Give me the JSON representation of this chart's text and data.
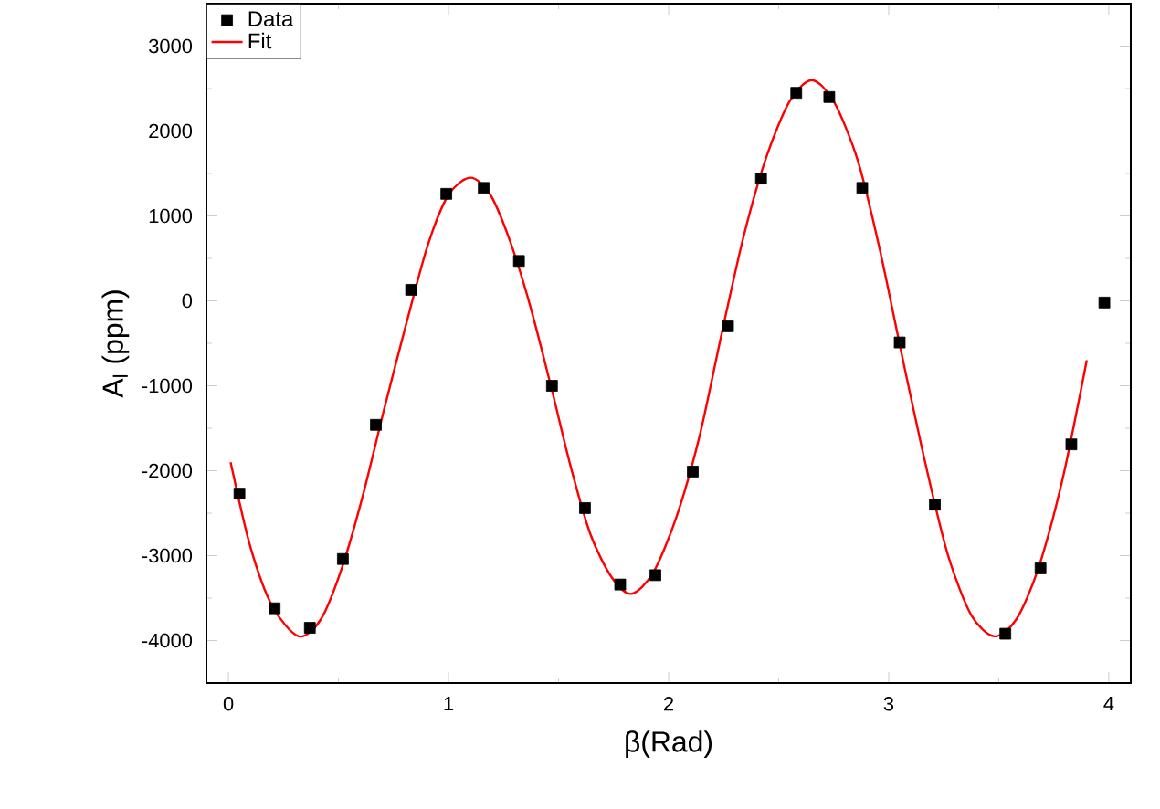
{
  "chart_data": {
    "type": "scatter",
    "xlabel": "β(Rad)",
    "ylabel": "A$_{l}$ (ppm)",
    "xlim": [
      -0.1,
      4.1
    ],
    "ylim": [
      -4500,
      3500
    ],
    "xticks": [
      0,
      1,
      2,
      3,
      4
    ],
    "yticks": [
      -4000,
      -3000,
      -2000,
      -1000,
      0,
      1000,
      2000,
      3000
    ],
    "legend": "top left",
    "grid": false,
    "series": [
      {
        "name": "Data",
        "marker": "square",
        "color": "#000000",
        "x": [
          0.05,
          0.21,
          0.37,
          0.52,
          0.67,
          0.83,
          0.99,
          1.16,
          1.32,
          1.47,
          1.62,
          1.78,
          1.94,
          2.11,
          2.27,
          2.42,
          2.58,
          2.73,
          2.88,
          3.05,
          3.21,
          3.53,
          3.69,
          3.83,
          3.98
        ],
        "values": [
          -2270,
          -3620,
          -3850,
          -3040,
          -1460,
          130,
          1260,
          1330,
          470,
          -1000,
          -2440,
          -3340,
          -3230,
          -2010,
          -300,
          1440,
          2450,
          2400,
          1330,
          -490,
          -2400,
          -3920,
          -3150,
          -1690,
          -20
        ]
      },
      {
        "name": "Fit",
        "type": "line",
        "marker": "none",
        "line_style": "solid",
        "color": "#ff0000",
        "x": [
          0.01,
          0.1,
          0.2,
          0.32,
          0.42,
          0.515,
          0.61,
          0.71,
          0.81,
          0.905,
          1.0,
          1.1,
          1.19,
          1.28,
          1.37,
          1.465,
          1.555,
          1.645,
          1.74,
          1.83,
          1.93,
          2.035,
          2.14,
          2.24,
          2.34,
          2.445,
          2.55,
          2.65,
          2.75,
          2.86,
          2.96,
          3.065,
          3.17,
          3.27,
          3.375,
          3.48,
          3.58,
          3.68,
          3.79,
          3.9
        ],
        "values": [
          -1900,
          -2900,
          -3600,
          -3950,
          -3750,
          -3150,
          -2300,
          -1250,
          -250,
          650,
          1250,
          1450,
          1250,
          700,
          -50,
          -1000,
          -1950,
          -2750,
          -3250,
          -3450,
          -3200,
          -2550,
          -1600,
          -400,
          750,
          1700,
          2350,
          2600,
          2350,
          1650,
          600,
          -700,
          -1950,
          -3000,
          -3700,
          -3950,
          -3750,
          -3150,
          -2100,
          -700
        ]
      }
    ]
  }
}
